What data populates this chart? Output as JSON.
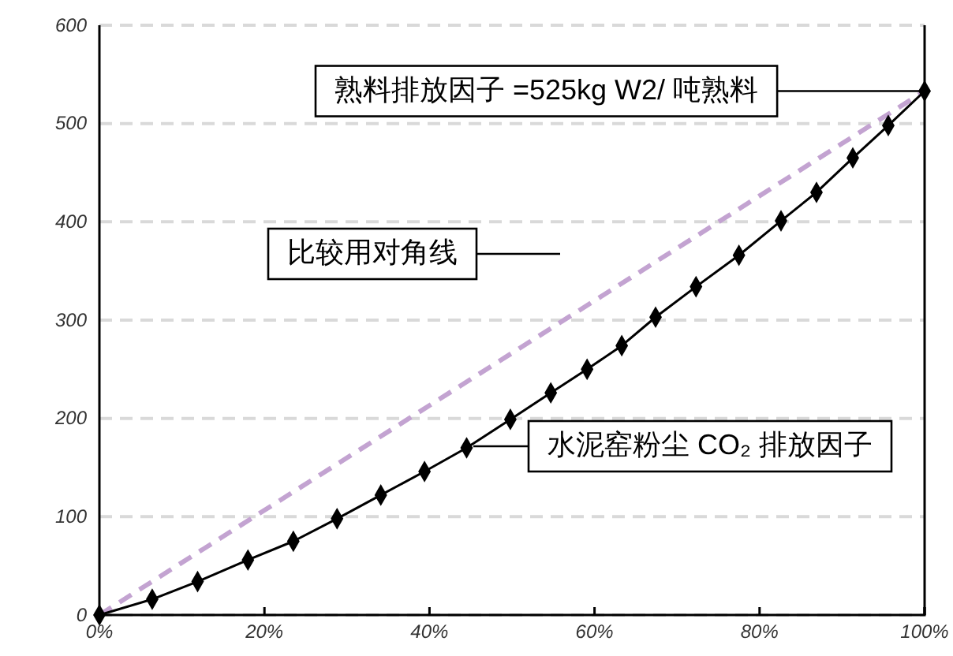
{
  "chart_data": {
    "type": "line",
    "xlim": [
      0,
      100
    ],
    "ylim": [
      0,
      600
    ],
    "xticks": [
      {
        "value": 0,
        "label": "0%"
      },
      {
        "value": 20,
        "label": "20%"
      },
      {
        "value": 40,
        "label": "40%"
      },
      {
        "value": 60,
        "label": "60%"
      },
      {
        "value": 80,
        "label": "80%"
      },
      {
        "value": 100,
        "label": "100%"
      }
    ],
    "yticks": [
      0,
      100,
      200,
      300,
      400,
      500,
      600
    ],
    "grid": "y",
    "series": [
      {
        "color": "#c3a3d1",
        "line_style": "dashed",
        "marker": "none",
        "x": [
          0,
          100
        ],
        "values": [
          0,
          533
        ]
      },
      {
        "color": "#000000",
        "line_style": "solid",
        "marker": "diamond",
        "x": [
          0,
          6.4,
          11.9,
          18,
          23.5,
          28.8,
          34.1,
          39.4,
          44.5,
          49.8,
          54.7,
          59.1,
          63.3,
          67.4,
          72.3,
          77.5,
          82.6,
          86.9,
          91.3,
          95.6,
          100
        ],
        "values": [
          0,
          16,
          34,
          56,
          75,
          98,
          122,
          146,
          170,
          199,
          226,
          250,
          274,
          303,
          334,
          366,
          401,
          430,
          465,
          498,
          533
        ]
      }
    ],
    "annotations": [
      {
        "text": "熟料排放因子 =525kg W2/ 吨熟料",
        "x": 100,
        "y": 533
      },
      "比较用对角线",
      "水泥窑粉尘 CO₂ 排放因子"
    ]
  }
}
